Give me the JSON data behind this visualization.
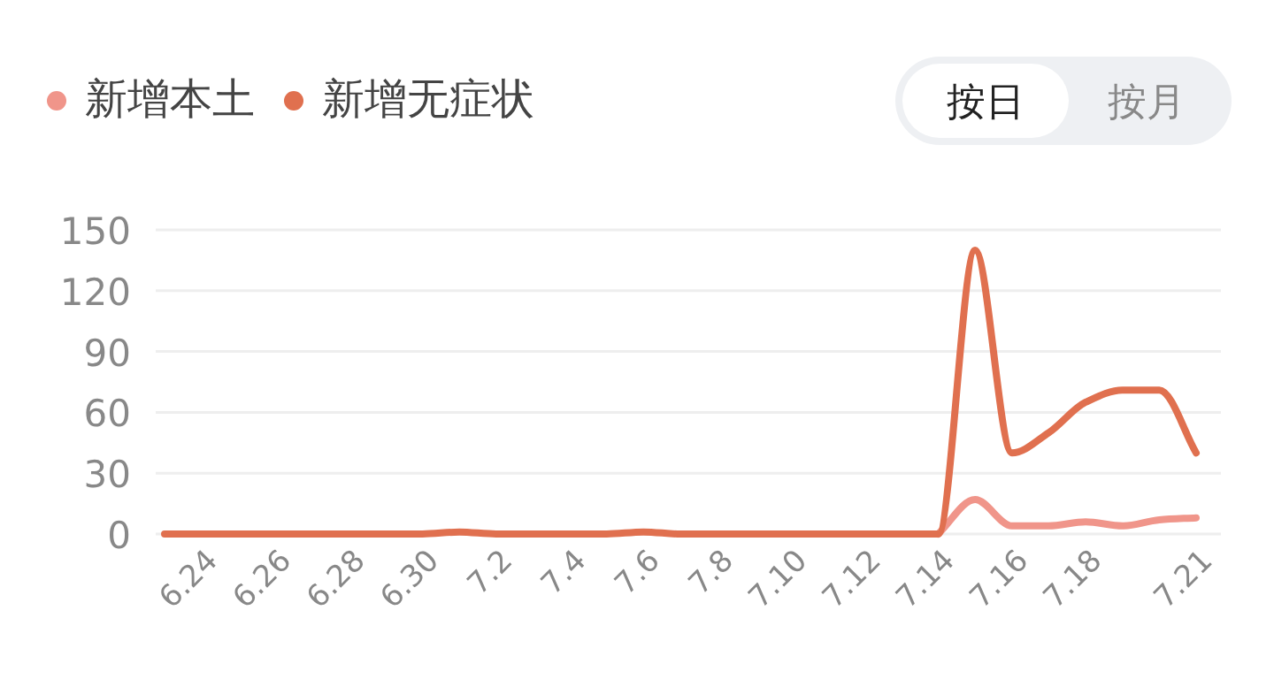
{
  "chart_data": {
    "type": "line",
    "categories": [
      null,
      "6.24",
      null,
      "6.26",
      null,
      "6.28",
      null,
      "6.30",
      null,
      "7.2",
      null,
      "7.4",
      null,
      "7.6",
      null,
      "7.8",
      null,
      "7.10",
      null,
      "7.12",
      null,
      "7.14",
      null,
      "7.16",
      null,
      "7.18",
      null,
      null,
      "7.21"
    ],
    "series": [
      {
        "name": "新增本土",
        "color": "#f0958a",
        "values": [
          null,
          null,
          null,
          null,
          null,
          null,
          null,
          null,
          null,
          null,
          null,
          null,
          null,
          null,
          null,
          null,
          null,
          null,
          null,
          null,
          null,
          0,
          17,
          4,
          4,
          6,
          4,
          7,
          8
        ]
      },
      {
        "name": "新增无症状",
        "color": "#e0704f",
        "values": [
          0,
          0,
          0,
          0,
          0,
          0,
          0,
          0,
          1,
          0,
          0,
          0,
          0,
          1,
          0,
          0,
          0,
          0,
          0,
          0,
          0,
          0,
          140,
          40,
          50,
          65,
          71,
          71,
          40
        ]
      }
    ],
    "ylim": [
      0,
      150
    ],
    "yticks": [
      0,
      30,
      60,
      90,
      120,
      150
    ],
    "grid": "y",
    "legend": "top left",
    "marker": "none",
    "line_style": "solid",
    "annotations": [
      "按日",
      "按月"
    ]
  }
}
